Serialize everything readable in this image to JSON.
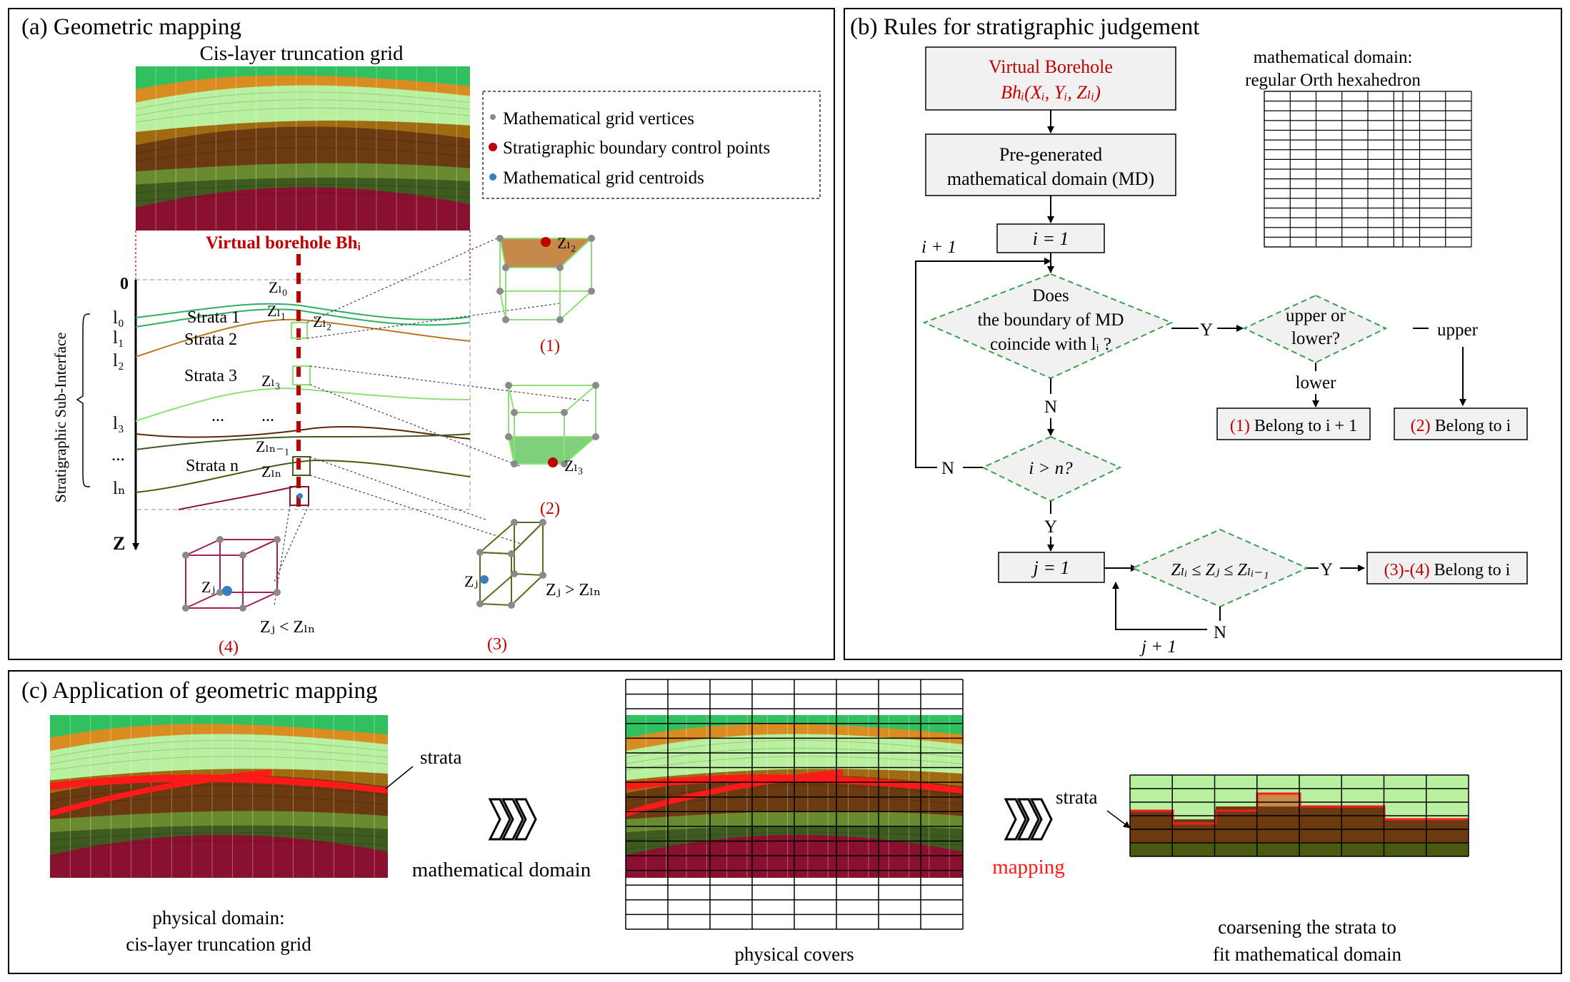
{
  "panel_a": {
    "title": "(a) Geometric mapping",
    "grid_title": "Cis-layer truncation grid",
    "borehole_label": "Virtual borehole Bhᵢ",
    "legend": [
      {
        "label": "Mathematical grid vertices",
        "color": "#8a8a8a"
      },
      {
        "label": "Stratigraphic boundary control points",
        "color": "#c00000"
      },
      {
        "label": "Mathematical grid centroids",
        "color": "#3a7ebf"
      }
    ],
    "axis_zero": "0",
    "axis_z": "Z",
    "vertical_label": "Stratigraphic Sub-Interface",
    "levels": [
      "l₀",
      "l₁",
      "l₂",
      "l₃",
      "...",
      "lₙ"
    ],
    "strata": [
      "Strata 1",
      "Strata 2",
      "Strata 3",
      "Strata n"
    ],
    "dots": [
      "...",
      "..."
    ],
    "z_labels": [
      "Zₗ₀",
      "Zₗ₁",
      "Zₗ₂",
      "Zₗ₃",
      "Zₗₙ₋₁",
      "Zₗₙ"
    ],
    "cubes": [
      {
        "num": "(1)",
        "label": "Zₗ₂"
      },
      {
        "num": "(2)",
        "label": "Zₗ₃"
      },
      {
        "num": "(3)",
        "label": "Zⱼ",
        "relation": "Zⱼ > Zₗₙ"
      },
      {
        "num": "(4)",
        "label": "Zⱼ",
        "relation": "Zⱼ < Zₗₙ"
      }
    ]
  },
  "panel_b": {
    "title": "(b) Rules for stratigraphic judgement",
    "md_caption_1": "mathematical domain:",
    "md_caption_2": "regular Orth hexahedron",
    "vb_line1": "Virtual Borehole",
    "vb_line2": "Bhᵢ(Xᵢ, Yᵢ, Zₗᵢ)",
    "pregen_line1": "Pre-generated",
    "pregen_line2": "mathematical domain (MD)",
    "i_init": "i = 1",
    "i_next": "i + 1",
    "does_1": "Does",
    "does_2": "the boundary of MD",
    "does_3": "coincide with lᵢ ?",
    "yes": "Y",
    "no": "N",
    "upper_lower_1": "upper or",
    "upper_lower_2": "lower?",
    "upper": "upper",
    "lower": "lower",
    "res1_num": "(1)",
    "res1_text": " Belong to i + 1",
    "res2_num": "(2)",
    "res2_text": " Belong to i",
    "i_gt_n": "i > n?",
    "j_init": "j = 1",
    "j_next": "j + 1",
    "cond": "Zₗᵢ ≤ Zⱼ ≤ Zₗᵢ₋₁",
    "res34_num": "(3)-(4)",
    "res34_text": " Belong to i"
  },
  "panel_c": {
    "title": "(c) Application of geometric mapping",
    "strata_label": "strata",
    "md_label": "mathematical domain",
    "physical_caption_1": "physical domain:",
    "physical_caption_2": "cis-layer truncation grid",
    "covers_caption": "physical covers",
    "strata_label_2": "strata",
    "mapping_label": "mapping",
    "coarse_caption_1": "coarsening the strata to",
    "coarse_caption_2": "fit mathematical domain"
  }
}
